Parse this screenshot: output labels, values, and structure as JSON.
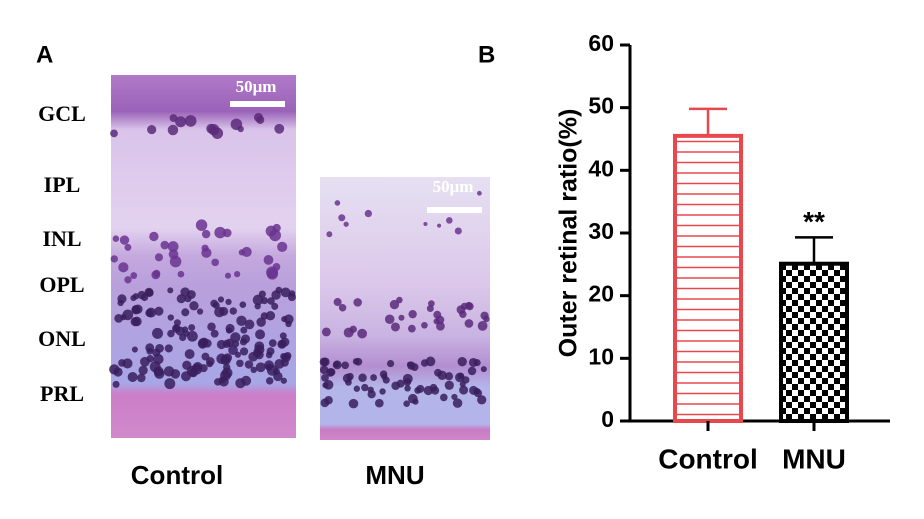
{
  "panel_a": {
    "label": "A",
    "layers": [
      "GCL",
      "IPL",
      "INL",
      "OPL",
      "ONL",
      "PRL"
    ],
    "scale_bar": "50μm",
    "images": [
      "Control",
      "MNU"
    ]
  },
  "chart_data": {
    "type": "bar",
    "label": "B",
    "y_label": "Outer retinal ratio(%)",
    "categories": [
      "Control",
      "MNU"
    ],
    "values": [
      45.5,
      25.1
    ],
    "errors": [
      4.3,
      4.2
    ],
    "colors": [
      "#e8474c",
      "#000000"
    ],
    "patterns": [
      "horizontal-stripes",
      "checkerboard"
    ],
    "annotation": "**",
    "ylim": [
      0,
      60
    ],
    "yticks": [
      0,
      10,
      20,
      30,
      40,
      50,
      60
    ]
  }
}
